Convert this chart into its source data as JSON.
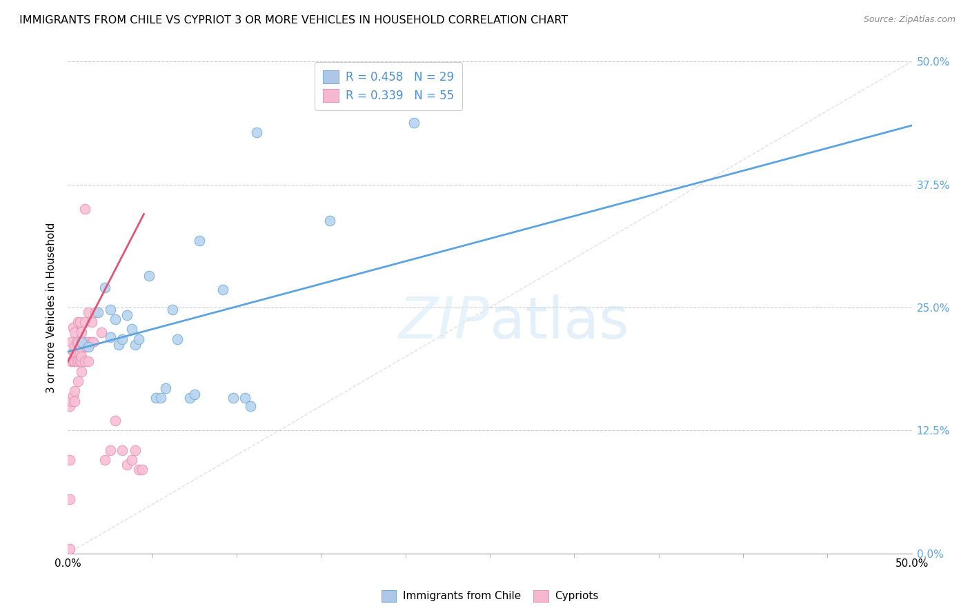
{
  "title": "IMMIGRANTS FROM CHILE VS CYPRIOT 3 OR MORE VEHICLES IN HOUSEHOLD CORRELATION CHART",
  "source": "Source: ZipAtlas.com",
  "ylabel": "3 or more Vehicles in Household",
  "xmin": 0.0,
  "xmax": 0.5,
  "ymin": 0.0,
  "ymax": 0.5,
  "xtick_positions": [
    0.0,
    0.5
  ],
  "xticklabels": [
    "0.0%",
    "50.0%"
  ],
  "yticks_right": [
    0.0,
    0.125,
    0.25,
    0.375,
    0.5
  ],
  "yticklabels_right": [
    "0.0%",
    "12.5%",
    "25.0%",
    "37.5%",
    "50.0%"
  ],
  "legend1_label": "R = 0.458   N = 29",
  "legend2_label": "R = 0.339   N = 55",
  "legend1_color": "#aec6e8",
  "legend2_color": "#f5b8ce",
  "line1_color": "#5ba3e0",
  "line2_color": "#e05575",
  "diagonal_color": "#dddddd",
  "scatter1_facecolor": "#b8d4f0",
  "scatter2_facecolor": "#f8c0d4",
  "scatter1_edge": "#7aafd4",
  "scatter2_edge": "#e898b8",
  "blue_points_x": [
    0.008,
    0.012,
    0.018,
    0.022,
    0.025,
    0.025,
    0.028,
    0.03,
    0.032,
    0.035,
    0.038,
    0.04,
    0.042,
    0.048,
    0.052,
    0.055,
    0.058,
    0.062,
    0.065,
    0.072,
    0.075,
    0.078,
    0.092,
    0.098,
    0.105,
    0.108,
    0.112,
    0.155,
    0.205
  ],
  "blue_points_y": [
    0.215,
    0.21,
    0.245,
    0.27,
    0.22,
    0.248,
    0.238,
    0.212,
    0.218,
    0.242,
    0.228,
    0.212,
    0.218,
    0.282,
    0.158,
    0.158,
    0.168,
    0.248,
    0.218,
    0.158,
    0.162,
    0.318,
    0.268,
    0.158,
    0.158,
    0.15,
    0.428,
    0.338,
    0.438
  ],
  "pink_points_x": [
    0.001,
    0.001,
    0.001,
    0.001,
    0.002,
    0.002,
    0.002,
    0.003,
    0.003,
    0.003,
    0.003,
    0.004,
    0.004,
    0.004,
    0.004,
    0.004,
    0.004,
    0.005,
    0.005,
    0.006,
    0.006,
    0.006,
    0.006,
    0.006,
    0.007,
    0.007,
    0.007,
    0.007,
    0.008,
    0.008,
    0.008,
    0.008,
    0.008,
    0.01,
    0.01,
    0.01,
    0.01,
    0.011,
    0.012,
    0.012,
    0.012,
    0.014,
    0.014,
    0.015,
    0.016,
    0.02,
    0.022,
    0.025,
    0.028,
    0.032,
    0.035,
    0.038,
    0.04,
    0.042,
    0.044
  ],
  "pink_points_y": [
    0.005,
    0.055,
    0.095,
    0.15,
    0.155,
    0.195,
    0.215,
    0.16,
    0.195,
    0.205,
    0.23,
    0.155,
    0.165,
    0.195,
    0.205,
    0.21,
    0.225,
    0.195,
    0.215,
    0.175,
    0.195,
    0.205,
    0.215,
    0.235,
    0.195,
    0.205,
    0.21,
    0.235,
    0.185,
    0.195,
    0.2,
    0.215,
    0.225,
    0.195,
    0.215,
    0.235,
    0.35,
    0.21,
    0.195,
    0.215,
    0.245,
    0.215,
    0.235,
    0.215,
    0.245,
    0.225,
    0.095,
    0.105,
    0.135,
    0.105,
    0.09,
    0.095,
    0.105,
    0.085,
    0.085
  ],
  "blue_line_x0": 0.0,
  "blue_line_y0": 0.205,
  "blue_line_x1": 0.5,
  "blue_line_y1": 0.435,
  "pink_line_x0": 0.0,
  "pink_line_y0": 0.195,
  "pink_line_x1": 0.045,
  "pink_line_y1": 0.345
}
